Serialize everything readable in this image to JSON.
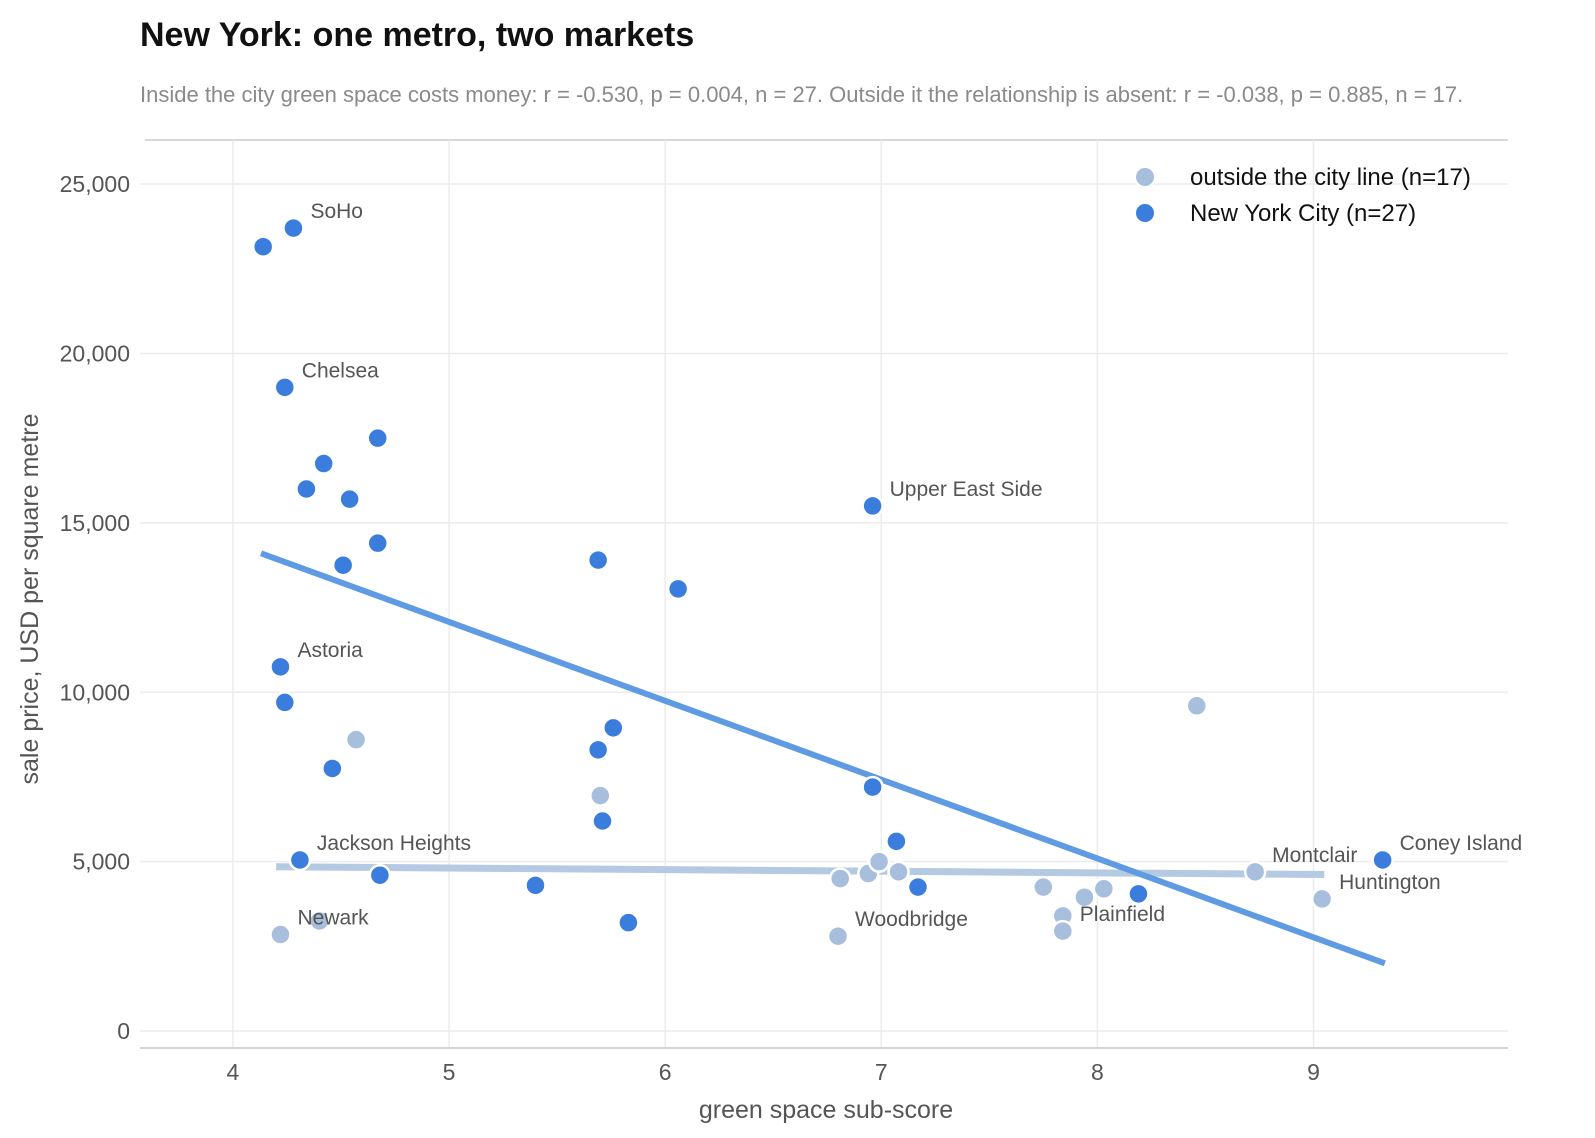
{
  "chart_data": {
    "type": "scatter",
    "title": "New York: one metro, two markets",
    "subtitle": "Inside the city green space costs money: r = -0.530, p = 0.004, n = 27. Outside it the relationship is absent: r = -0.038, p = 0.885, n = 17.",
    "xlabel": "green space sub-score",
    "ylabel": "sale price, USD per square metre",
    "xlim": [
      3.57,
      9.9
    ],
    "ylim": [
      -500,
      26300
    ],
    "xticks": [
      4,
      5,
      6,
      7,
      8,
      9
    ],
    "yticks": [
      0,
      5000,
      10000,
      15000,
      20000,
      25000
    ],
    "xtick_labels": [
      "4",
      "5",
      "6",
      "7",
      "8",
      "9"
    ],
    "ytick_labels": [
      "0",
      "5,000",
      "10,000",
      "15,000",
      "20,000",
      "25,000"
    ],
    "grid": true,
    "legend_position": "top-right",
    "series": [
      {
        "key": "outside",
        "name": "outside the city line  (n=17)",
        "color": "#a7bfdc",
        "points": [
          {
            "x": 4.22,
            "y": 2850,
            "label": "Newark"
          },
          {
            "x": 4.4,
            "y": 3250
          },
          {
            "x": 4.57,
            "y": 8600
          },
          {
            "x": 5.7,
            "y": 6950
          },
          {
            "x": 6.8,
            "y": 2800,
            "label": "Woodbridge"
          },
          {
            "x": 6.81,
            "y": 4500
          },
          {
            "x": 6.94,
            "y": 4650
          },
          {
            "x": 6.99,
            "y": 5000
          },
          {
            "x": 7.08,
            "y": 4700
          },
          {
            "x": 7.75,
            "y": 4250
          },
          {
            "x": 7.84,
            "y": 3400
          },
          {
            "x": 7.84,
            "y": 2950,
            "label": "Plainfield"
          },
          {
            "x": 7.94,
            "y": 3950
          },
          {
            "x": 8.03,
            "y": 4200
          },
          {
            "x": 8.46,
            "y": 9600
          },
          {
            "x": 8.73,
            "y": 4700,
            "label": "Montclair"
          },
          {
            "x": 9.04,
            "y": 3900,
            "label": "Huntington"
          }
        ],
        "trend": {
          "x": [
            4.2,
            9.05
          ],
          "y": [
            4850,
            4620
          ]
        }
      },
      {
        "key": "nyc",
        "name": "New York City  (n=27)",
        "color": "#3b7ddd",
        "points": [
          {
            "x": 4.14,
            "y": 23150
          },
          {
            "x": 4.28,
            "y": 23700,
            "label": "SoHo"
          },
          {
            "x": 4.24,
            "y": 19000,
            "label": "Chelsea"
          },
          {
            "x": 4.67,
            "y": 17500
          },
          {
            "x": 4.42,
            "y": 16750
          },
          {
            "x": 4.34,
            "y": 16000
          },
          {
            "x": 4.54,
            "y": 15700
          },
          {
            "x": 4.67,
            "y": 14400
          },
          {
            "x": 4.51,
            "y": 13750
          },
          {
            "x": 4.22,
            "y": 10750,
            "label": "Astoria"
          },
          {
            "x": 4.24,
            "y": 9700
          },
          {
            "x": 4.46,
            "y": 7750
          },
          {
            "x": 4.31,
            "y": 5050,
            "label": "Jackson Heights"
          },
          {
            "x": 4.68,
            "y": 4600
          },
          {
            "x": 5.4,
            "y": 4300
          },
          {
            "x": 5.69,
            "y": 13900
          },
          {
            "x": 6.06,
            "y": 13050
          },
          {
            "x": 5.76,
            "y": 8950
          },
          {
            "x": 5.69,
            "y": 8300
          },
          {
            "x": 5.71,
            "y": 6200
          },
          {
            "x": 5.83,
            "y": 3200
          },
          {
            "x": 6.96,
            "y": 15500,
            "label": "Upper East Side"
          },
          {
            "x": 6.96,
            "y": 7200
          },
          {
            "x": 7.07,
            "y": 5600
          },
          {
            "x": 7.17,
            "y": 4250
          },
          {
            "x": 8.19,
            "y": 4050
          },
          {
            "x": 9.32,
            "y": 5050,
            "label": "Coney Island"
          }
        ],
        "trend": {
          "x": [
            4.13,
            9.33
          ],
          "y": [
            14100,
            2000
          ]
        }
      }
    ]
  }
}
